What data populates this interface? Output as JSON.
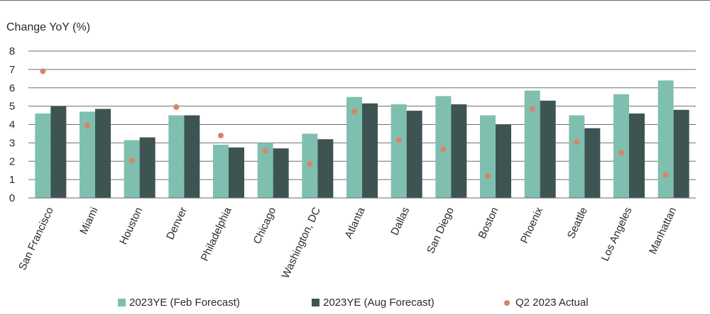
{
  "chart_data": {
    "type": "bar",
    "ylabel": "Change YoY (%)",
    "ylim": [
      0,
      8
    ],
    "yticks": [
      "0",
      "1",
      "2",
      "3",
      "4",
      "5",
      "6",
      "7",
      "8"
    ],
    "grid": true,
    "legend_position": "bottom",
    "categories": [
      "San Francisco",
      "Miami",
      "Houston",
      "Denver",
      "Philadelphia",
      "Chicago",
      "Washington, DC",
      "Atlanta",
      "Dallas",
      "San Diego",
      "Boston",
      "Phoenix",
      "Seattle",
      "Los Angeles",
      "Manhattan"
    ],
    "series": [
      {
        "name": "2023YE (Feb Forecast)",
        "kind": "bar",
        "color": "#7fbfb0",
        "values": [
          4.6,
          4.7,
          3.15,
          4.5,
          2.9,
          3.0,
          3.5,
          5.5,
          5.1,
          5.55,
          4.5,
          5.85,
          4.5,
          5.65,
          6.4
        ]
      },
      {
        "name": "2023YE (Aug Forecast)",
        "kind": "bar",
        "color": "#3e5453",
        "values": [
          5.0,
          4.85,
          3.3,
          4.5,
          2.75,
          2.7,
          3.2,
          5.15,
          4.75,
          5.1,
          4.0,
          5.3,
          3.8,
          4.6,
          4.8
        ]
      },
      {
        "name": "Q2 2023 Actual",
        "kind": "dot",
        "color": "#d98466",
        "values": [
          6.9,
          3.95,
          2.05,
          4.95,
          3.4,
          2.55,
          1.85,
          4.7,
          3.15,
          2.65,
          1.2,
          4.85,
          3.05,
          2.45,
          1.25
        ]
      }
    ]
  }
}
